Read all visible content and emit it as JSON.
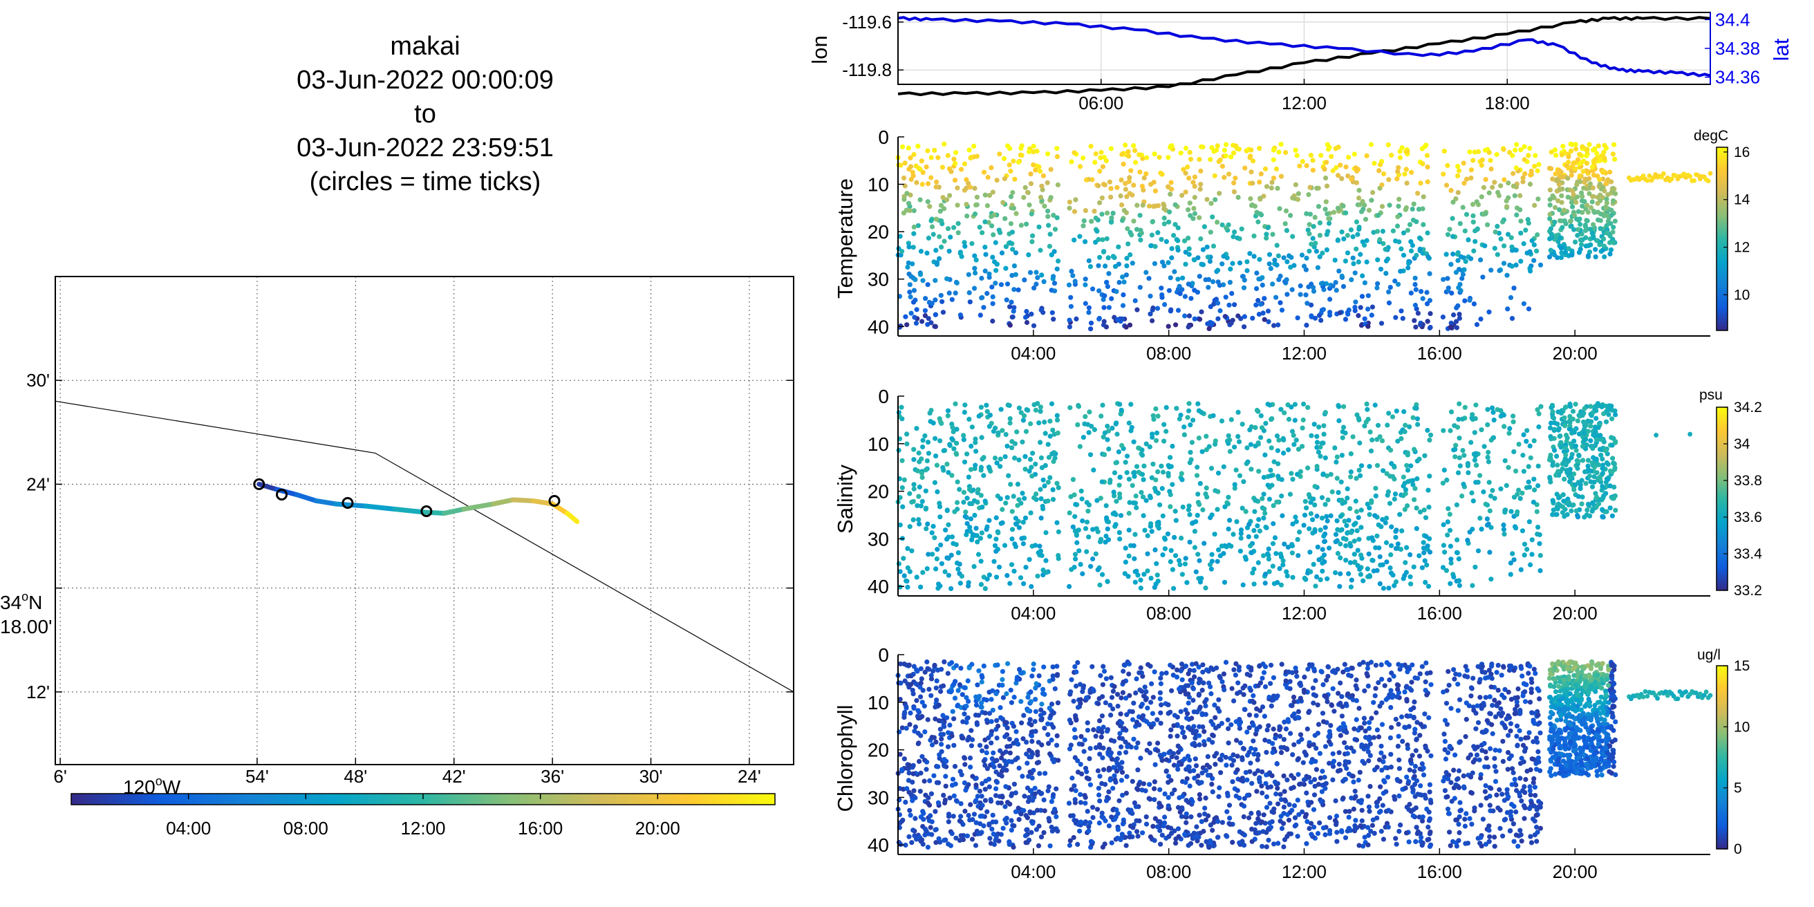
{
  "title": {
    "lines": [
      "makai",
      "03-Jun-2022 00:00:09",
      "to",
      "03-Jun-2022 23:59:51",
      "(circles = time ticks)"
    ]
  },
  "colors": {
    "lon_line": "#000000",
    "lat_line": "#0000dd",
    "parula": [
      "#352a87",
      "#0f5cdd",
      "#1481d6",
      "#06a4ca",
      "#2eb7a4",
      "#87bf77",
      "#d1bb59",
      "#fec832",
      "#f9fb0e"
    ]
  },
  "chart_data": [
    {
      "id": "map",
      "type": "line",
      "lon_tick_labels": [
        "6'",
        "54'",
        "48'",
        "42'",
        "36'",
        "30'",
        "24'"
      ],
      "lon_ticks": [
        -120.1,
        -119.9,
        -119.8,
        -119.7,
        -119.6,
        -119.5,
        -119.4
      ],
      "lon_degree_label": "120",
      "lon_degree_suffix": "W",
      "lat_tick_labels": [
        "30'",
        "24'",
        "12'"
      ],
      "lat_ticks": [
        34.5,
        34.4,
        34.2
      ],
      "lat_degree_label_deg": "34",
      "lat_degree_label_dir": "N",
      "lat_degree_label_min": "18.00'",
      "lat_degree_tick": 34.3,
      "xlim": [
        -120.105,
        -119.355
      ],
      "ylim": [
        34.13,
        34.6
      ],
      "coastline": {
        "lon": [
          -120.105,
          -119.78,
          -119.355
        ],
        "lat": [
          34.48,
          34.43,
          34.2
        ]
      },
      "track": {
        "lon": [
          -119.898,
          -119.88,
          -119.86,
          -119.84,
          -119.82,
          -119.79,
          -119.76,
          -119.73,
          -119.71,
          -119.69,
          -119.66,
          -119.64,
          -119.62,
          -119.6,
          -119.585,
          -119.575
        ],
        "lat": [
          34.4,
          34.395,
          34.39,
          34.384,
          34.381,
          34.379,
          34.376,
          34.373,
          34.372,
          34.376,
          34.381,
          34.385,
          34.384,
          34.381,
          34.372,
          34.364
        ],
        "time_h": [
          0,
          2,
          3.5,
          5,
          6.5,
          8,
          9.5,
          11,
          12.5,
          14,
          15.5,
          17,
          18.5,
          20,
          22,
          24
        ]
      },
      "time_tick_markers": {
        "lon": [
          -119.898,
          -119.875,
          -119.808,
          -119.728,
          -119.598
        ],
        "lat": [
          34.4,
          34.39,
          34.382,
          34.374,
          34.384
        ]
      },
      "colorbar": {
        "ticks": [
          "04:00",
          "08:00",
          "12:00",
          "16:00",
          "20:00"
        ],
        "range_h": [
          0,
          24
        ]
      }
    },
    {
      "id": "lonlat",
      "type": "line",
      "ylabel_left": "lon",
      "ylabel_right": "lat",
      "x_tick_labels": [
        "06:00",
        "12:00",
        "18:00"
      ],
      "x_ticks_h": [
        6,
        12,
        18
      ],
      "xlim_h": [
        0,
        24
      ],
      "left_ylim": [
        -119.86,
        -119.56
      ],
      "left_tick_labels": [
        "-119.6",
        "-119.8"
      ],
      "left_ticks": [
        -119.6,
        -119.8
      ],
      "right_ylim": [
        34.355,
        34.405
      ],
      "right_tick_labels": [
        "34.4",
        "34.38",
        "34.36"
      ],
      "right_ticks": [
        34.4,
        34.38,
        34.36
      ],
      "series": [
        {
          "name": "lon",
          "x_h": [
            0,
            2,
            4,
            6,
            8,
            10,
            12,
            14,
            16,
            18,
            20,
            21,
            22,
            24
          ],
          "y": [
            -119.9,
            -119.898,
            -119.895,
            -119.885,
            -119.87,
            -119.82,
            -119.77,
            -119.73,
            -119.69,
            -119.65,
            -119.6,
            -119.585,
            -119.585,
            -119.585
          ]
        },
        {
          "name": "lat",
          "x_h": [
            0,
            1,
            3,
            5,
            7,
            9,
            11,
            13,
            15.5,
            17,
            18.6,
            19.5,
            20.5,
            21.3,
            22,
            23,
            24
          ],
          "y": [
            34.401,
            34.4,
            34.399,
            34.397,
            34.393,
            34.387,
            34.383,
            34.38,
            34.375,
            34.378,
            34.386,
            34.382,
            34.37,
            34.365,
            34.364,
            34.363,
            34.361
          ]
        }
      ]
    },
    {
      "id": "temperature",
      "type": "scatter",
      "ylabel": "Temperature",
      "unit": "degC",
      "ylim": [
        0,
        42
      ],
      "y_ticks": [
        0,
        10,
        20,
        30,
        40
      ],
      "x_tick_labels": [
        "04:00",
        "08:00",
        "12:00",
        "16:00",
        "20:00"
      ],
      "x_ticks_h": [
        4,
        8,
        12,
        16,
        20
      ],
      "xlim_h": [
        0,
        24
      ],
      "clim": [
        8.5,
        16.2
      ],
      "cbar_ticks": [
        16,
        14,
        12,
        10
      ]
    },
    {
      "id": "salinity",
      "type": "scatter",
      "ylabel": "Salinity",
      "unit": "psu",
      "ylim": [
        0,
        42
      ],
      "y_ticks": [
        0,
        10,
        20,
        30,
        40
      ],
      "x_tick_labels": [
        "04:00",
        "08:00",
        "12:00",
        "16:00",
        "20:00"
      ],
      "x_ticks_h": [
        4,
        8,
        12,
        16,
        20
      ],
      "xlim_h": [
        0,
        24
      ],
      "clim": [
        33.2,
        34.2
      ],
      "cbar_ticks": [
        34.2,
        34,
        33.8,
        33.6,
        33.4,
        33.2
      ]
    },
    {
      "id": "chlorophyll",
      "type": "scatter",
      "ylabel": "Chlorophyll",
      "unit": "ug/l",
      "ylim": [
        0,
        42
      ],
      "y_ticks": [
        0,
        10,
        20,
        30,
        40
      ],
      "x_tick_labels": [
        "04:00",
        "08:00",
        "12:00",
        "16:00",
        "20:00"
      ],
      "x_ticks_h": [
        4,
        8,
        12,
        16,
        20
      ],
      "xlim_h": [
        0,
        24
      ],
      "clim": [
        0,
        15
      ],
      "cbar_ticks": [
        15,
        10,
        5,
        0
      ]
    }
  ]
}
